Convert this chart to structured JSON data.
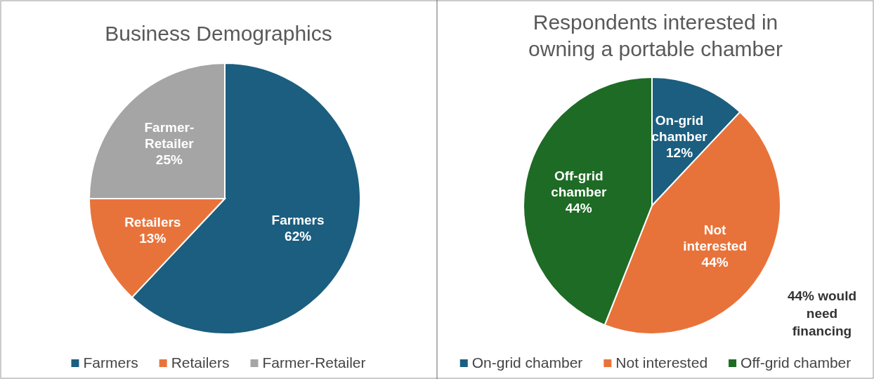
{
  "chart_data": [
    {
      "type": "pie",
      "title": "Business Demographics",
      "categories": [
        "Farmers",
        "Retailers",
        "Farmer-Retailer"
      ],
      "values": [
        62,
        13,
        25
      ],
      "value_labels": [
        "62%",
        "13%",
        "25%"
      ],
      "colors": [
        "#1b5e7f",
        "#e8733a",
        "#a5a5a5"
      ],
      "data_labels": true,
      "legend": "bottom"
    },
    {
      "type": "pie",
      "title": "Respondents interested in owning a portable chamber",
      "categories": [
        "On-grid chamber",
        "Not interested",
        "Off-grid chamber"
      ],
      "values": [
        12,
        44,
        44
      ],
      "value_labels": [
        "12%",
        "44%",
        "44%"
      ],
      "colors": [
        "#1b5e7f",
        "#e8733a",
        "#1e6b25"
      ],
      "data_labels": true,
      "legend": "bottom",
      "annotations": [
        "44% would need financing"
      ]
    }
  ]
}
